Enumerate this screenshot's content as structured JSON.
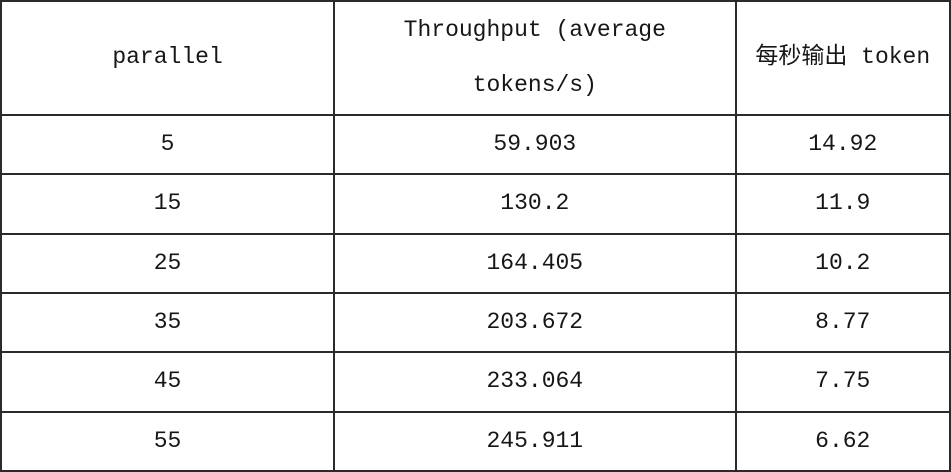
{
  "table": {
    "header": {
      "parallel": "parallel",
      "throughput_line1": "Throughput (average",
      "throughput_line2": "tokens/s)",
      "tokens_per_second": "每秒输出 token"
    },
    "rows": [
      {
        "parallel": "5",
        "throughput": "59.903",
        "tokens_per_second": "14.92"
      },
      {
        "parallel": "15",
        "throughput": "130.2",
        "tokens_per_second": "11.9"
      },
      {
        "parallel": "25",
        "throughput": "164.405",
        "tokens_per_second": "10.2"
      },
      {
        "parallel": "35",
        "throughput": "203.672",
        "tokens_per_second": "8.77"
      },
      {
        "parallel": "45",
        "throughput": "233.064",
        "tokens_per_second": "7.75"
      },
      {
        "parallel": "55",
        "throughput": "245.911",
        "tokens_per_second": "6.62"
      }
    ]
  }
}
